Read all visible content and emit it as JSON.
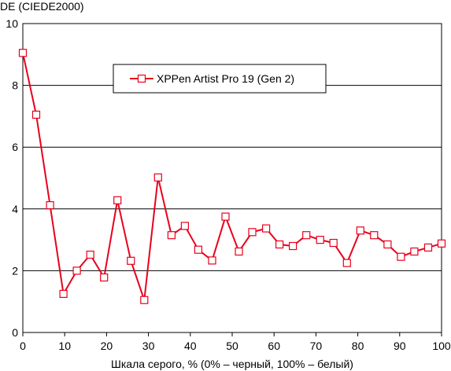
{
  "chart_data": {
    "type": "line",
    "ylabel": "DE (CIEDE2000)",
    "xlabel": "Шкала серого, % (0% – черный, 100% – белый)",
    "xlim": [
      0,
      100
    ],
    "ylim": [
      0,
      10
    ],
    "x_ticks": [
      0,
      10,
      20,
      30,
      40,
      50,
      60,
      70,
      80,
      90,
      100
    ],
    "y_ticks": [
      0,
      2,
      4,
      6,
      8,
      10
    ],
    "grid": "horizontal",
    "legend_position": "top-center",
    "series": [
      {
        "name": "XPPen Artist Pro 19 (Gen 2)",
        "color": "#e8001c",
        "marker": "square-open",
        "x": [
          0,
          3.2,
          6.5,
          9.7,
          12.9,
          16.1,
          19.4,
          22.6,
          25.8,
          29.0,
          32.3,
          35.5,
          38.7,
          41.9,
          45.2,
          48.4,
          51.6,
          54.8,
          58.1,
          61.3,
          64.5,
          67.7,
          71.0,
          74.2,
          77.4,
          80.6,
          83.9,
          87.1,
          90.3,
          93.5,
          96.8,
          100
        ],
        "y": [
          9.05,
          7.05,
          4.12,
          1.25,
          2.0,
          2.52,
          1.78,
          4.28,
          2.32,
          1.05,
          5.02,
          3.15,
          3.45,
          2.68,
          2.33,
          3.75,
          2.62,
          3.25,
          3.37,
          2.85,
          2.8,
          3.15,
          3.0,
          2.9,
          2.25,
          3.3,
          3.15,
          2.85,
          2.45,
          2.62,
          2.75,
          2.88
        ]
      }
    ]
  }
}
